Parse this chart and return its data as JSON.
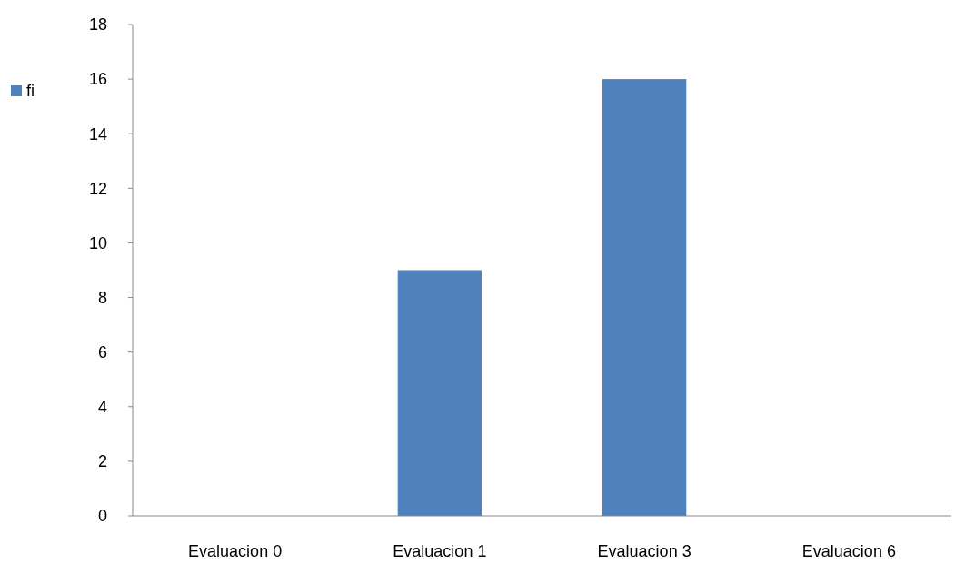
{
  "chart_data": {
    "type": "bar",
    "categories": [
      "Evaluacion 0",
      "Evaluacion 1",
      "Evaluacion 3",
      "Evaluacion 6"
    ],
    "series": [
      {
        "name": "fi",
        "color": "#4f81bd",
        "values": [
          0,
          9,
          16,
          0
        ]
      }
    ],
    "ylim": [
      0,
      18
    ],
    "yticks": [
      0,
      2,
      4,
      6,
      8,
      10,
      12,
      14,
      16,
      18
    ],
    "grid": false,
    "legend": "top left"
  }
}
